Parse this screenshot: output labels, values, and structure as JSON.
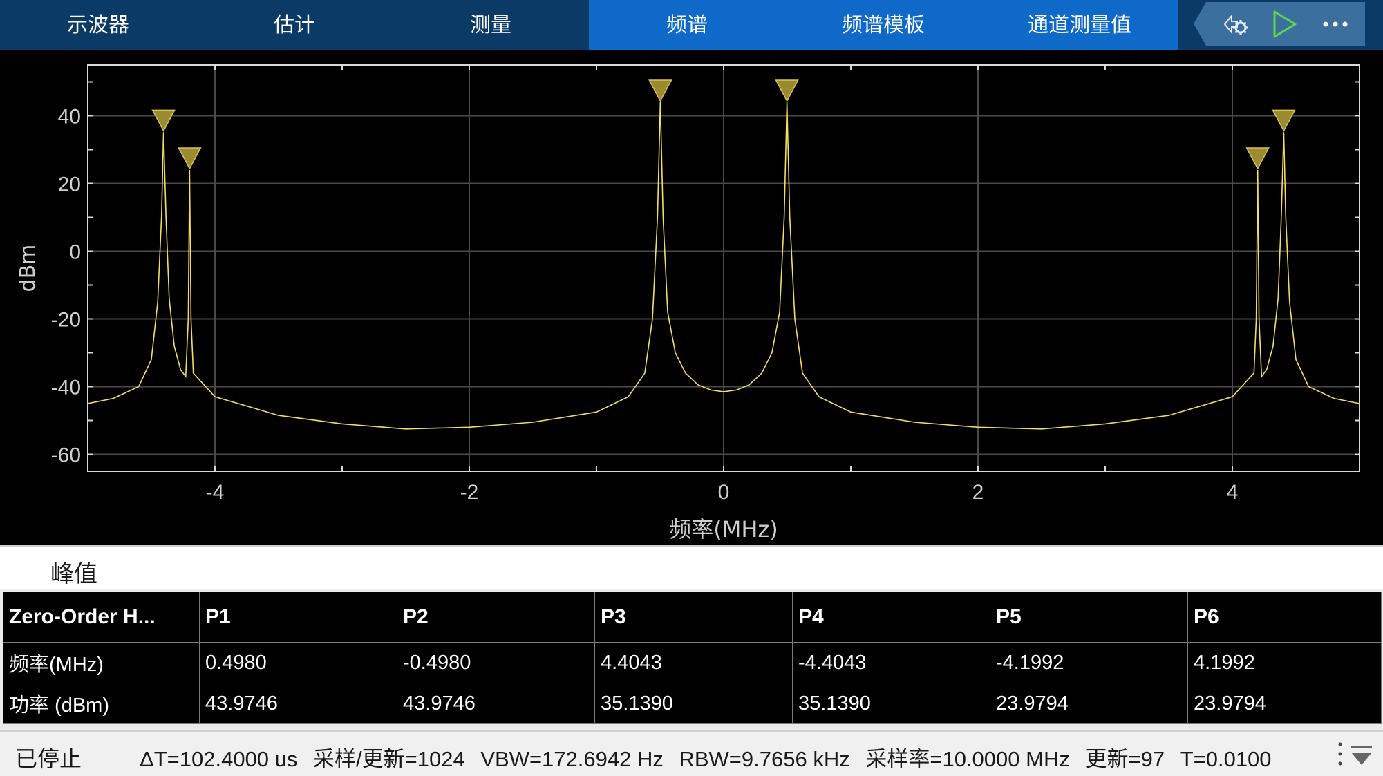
{
  "tabs": [
    {
      "label": "示波器",
      "active": false
    },
    {
      "label": "估计",
      "active": false
    },
    {
      "label": "测量",
      "active": false
    },
    {
      "label": "频谱",
      "active": true
    },
    {
      "label": "频谱模板",
      "active": true
    },
    {
      "label": "通道测量值",
      "active": true
    }
  ],
  "toolbar": {
    "icons": [
      "settings-gear-icon",
      "run-play-icon",
      "more-options-icon"
    ]
  },
  "chart_data": {
    "type": "line",
    "title": "",
    "xlabel": "频率(MHz)",
    "ylabel": "dBm",
    "xlim": [
      -5,
      5
    ],
    "ylim": [
      -65,
      55
    ],
    "x_ticks": [
      -4,
      -2,
      0,
      2,
      4
    ],
    "y_ticks": [
      40,
      20,
      0,
      -20,
      -40,
      -60
    ],
    "grid": true,
    "line_color": "#f5de5e",
    "marker_color": "#9c8a30",
    "series": [
      {
        "points": [
          [
            -5.0,
            -45.0
          ],
          [
            -4.8,
            -43.5
          ],
          [
            -4.6,
            -40.0
          ],
          [
            -4.5,
            -32.0
          ],
          [
            -4.45,
            -15.0
          ],
          [
            -4.42,
            10.0
          ],
          [
            -4.4043,
            35.14
          ],
          [
            -4.385,
            10.0
          ],
          [
            -4.36,
            -14.0
          ],
          [
            -4.32,
            -28.0
          ],
          [
            -4.27,
            -35.0
          ],
          [
            -4.23,
            -37.0
          ],
          [
            -4.21,
            -20.0
          ],
          [
            -4.1992,
            23.98
          ],
          [
            -4.188,
            -20.0
          ],
          [
            -4.17,
            -36.0
          ],
          [
            -4.0,
            -43.0
          ],
          [
            -3.5,
            -48.5
          ],
          [
            -3.0,
            -51.0
          ],
          [
            -2.5,
            -52.5
          ],
          [
            -2.0,
            -52.0
          ],
          [
            -1.5,
            -50.5
          ],
          [
            -1.0,
            -47.5
          ],
          [
            -0.75,
            -43.0
          ],
          [
            -0.62,
            -36.0
          ],
          [
            -0.56,
            -20.0
          ],
          [
            -0.52,
            10.0
          ],
          [
            -0.498,
            43.97
          ],
          [
            -0.476,
            10.0
          ],
          [
            -0.44,
            -18.0
          ],
          [
            -0.38,
            -30.0
          ],
          [
            -0.3,
            -36.0
          ],
          [
            -0.2,
            -39.5
          ],
          [
            -0.1,
            -41.0
          ],
          [
            0.0,
            -41.5
          ],
          [
            0.1,
            -41.0
          ],
          [
            0.2,
            -39.5
          ],
          [
            0.3,
            -36.0
          ],
          [
            0.38,
            -30.0
          ],
          [
            0.44,
            -18.0
          ],
          [
            0.476,
            10.0
          ],
          [
            0.498,
            43.97
          ],
          [
            0.52,
            10.0
          ],
          [
            0.56,
            -20.0
          ],
          [
            0.62,
            -36.0
          ],
          [
            0.75,
            -43.0
          ],
          [
            1.0,
            -47.5
          ],
          [
            1.5,
            -50.5
          ],
          [
            2.0,
            -52.0
          ],
          [
            2.5,
            -52.5
          ],
          [
            3.0,
            -51.0
          ],
          [
            3.5,
            -48.5
          ],
          [
            4.0,
            -43.0
          ],
          [
            4.17,
            -36.0
          ],
          [
            4.188,
            -20.0
          ],
          [
            4.1992,
            23.98
          ],
          [
            4.21,
            -20.0
          ],
          [
            4.23,
            -37.0
          ],
          [
            4.27,
            -35.0
          ],
          [
            4.32,
            -28.0
          ],
          [
            4.36,
            -14.0
          ],
          [
            4.385,
            10.0
          ],
          [
            4.4043,
            35.14
          ],
          [
            4.42,
            10.0
          ],
          [
            4.45,
            -15.0
          ],
          [
            4.5,
            -32.0
          ],
          [
            4.6,
            -40.0
          ],
          [
            4.8,
            -43.5
          ],
          [
            5.0,
            -45.0
          ]
        ]
      }
    ],
    "peak_markers": [
      {
        "x": -4.4043,
        "y": 35.14
      },
      {
        "x": -4.1992,
        "y": 23.98
      },
      {
        "x": -0.498,
        "y": 43.97
      },
      {
        "x": 0.498,
        "y": 43.97
      },
      {
        "x": 4.1992,
        "y": 23.98
      },
      {
        "x": 4.4043,
        "y": 35.14
      }
    ]
  },
  "peaks": {
    "title": "峰值",
    "channel": "Zero-Order H...",
    "columns": [
      "P1",
      "P2",
      "P3",
      "P4",
      "P5",
      "P6"
    ],
    "freq_label": "频率(MHz)",
    "power_label": "功率 (dBm)",
    "freq": [
      "0.4980",
      "-0.4980",
      "4.4043",
      "-4.4043",
      "-4.1992",
      "4.1992"
    ],
    "power": [
      "43.9746",
      "43.9746",
      "35.1390",
      "35.1390",
      "23.9794",
      "23.9794"
    ]
  },
  "status": {
    "state": "已停止",
    "readouts": [
      "ΔT=102.4000 us",
      "采样/更新=1024",
      "VBW=172.6942 Hz",
      "RBW=9.7656 kHz",
      "采样率=10.0000 MHz",
      "更新=97",
      "T=0.0100"
    ]
  }
}
